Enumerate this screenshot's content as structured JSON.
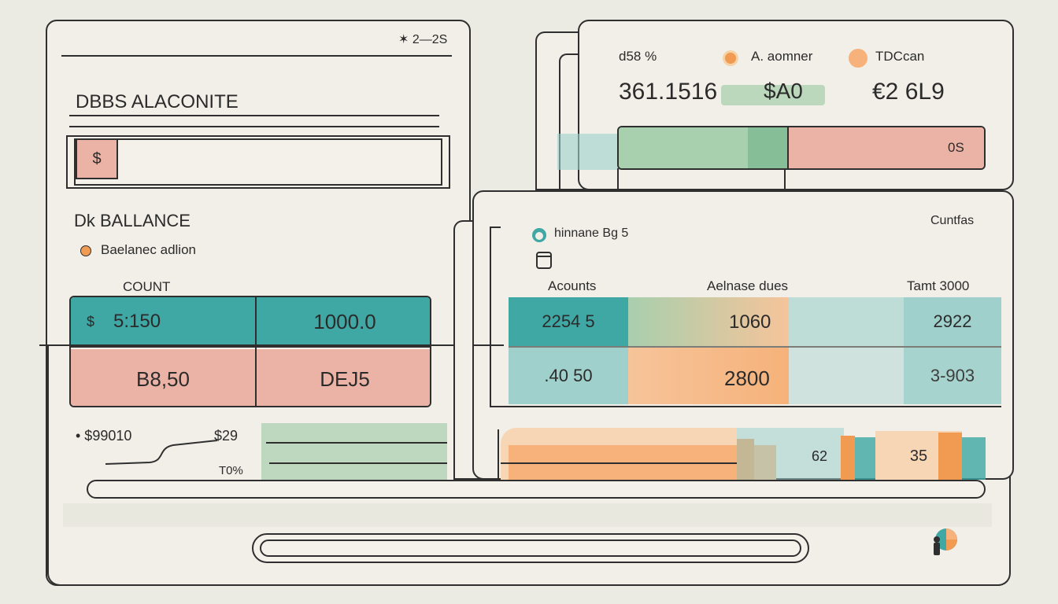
{
  "colors": {
    "teal": "#3fa7a4",
    "light_teal": "#9fd0cc",
    "pink": "#ebb3a6",
    "green": "#a8cfae",
    "orange": "#f6b27a",
    "background": "#ecebe3",
    "outline": "#2f2f2f"
  },
  "left_panel": {
    "corner_value": "✶ 2―2S",
    "title": "DBBS ALACONITE",
    "input_icon": "$",
    "balance_heading": "Dk BALLANCE",
    "legend_label": "Baelanec adlion",
    "count_label": "COUNT",
    "table": {
      "row1": [
        "$",
        "5:150",
        "1000.0"
      ],
      "row2": [
        "B8,50",
        "DEJ5"
      ]
    },
    "footer": {
      "left_value": "• $99010",
      "mid_value": "$29",
      "percent": "T0%"
    }
  },
  "right_top_panel": {
    "pct_label": "d58 %",
    "legend1": "A. aomner",
    "legend2": "TDCcan",
    "value1": "361.1516",
    "value2": "$A0",
    "value3": "€2 6L9",
    "bar_value": "0S"
  },
  "right_mid_panel": {
    "corner_label": "Cuntfas",
    "header_label": "hinnane Bg 5",
    "col_headers": [
      "Acounts",
      "Aelnase dues",
      "Tamt 3000"
    ],
    "rows": [
      [
        "2254 5",
        "1060",
        "2922"
      ],
      [
        ".40 50",
        "2800",
        "3-903"
      ]
    ],
    "bar_values": [
      "62",
      "35"
    ]
  },
  "icons": [
    "dollar-icon",
    "dot-orange-icon",
    "cylinder-icon",
    "headset-icon",
    "pie-person-icon"
  ]
}
